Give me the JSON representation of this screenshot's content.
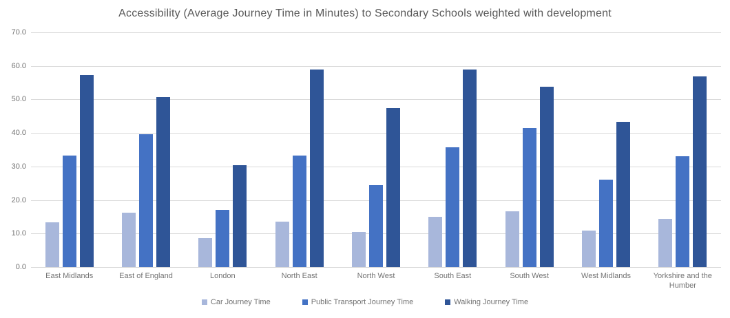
{
  "chart_data": {
    "type": "bar",
    "title": "Accessibility (Average Journey Time in Minutes) to Secondary Schools weighted with development",
    "xlabel": "",
    "ylabel": "",
    "ylim": [
      0,
      70
    ],
    "ytick_step": 10,
    "yticks_top_to_bottom": [
      "70.0",
      "60.0",
      "50.0",
      "40.0",
      "30.0",
      "20.0",
      "10.0",
      "0.0"
    ],
    "grid": "horizontal",
    "gridline_color": "#d9d9d9",
    "legend_position": "bottom",
    "categories": [
      "East Midlands",
      "East of England",
      "London",
      "North East",
      "North West",
      "South East",
      "South West",
      "West Midlands",
      "Yorkshire and the Humber"
    ],
    "series": [
      {
        "name": "Car Journey Time",
        "color": "#a8b7db",
        "values": [
          13.3,
          16.3,
          8.6,
          13.6,
          10.4,
          14.9,
          16.7,
          10.8,
          14.4
        ]
      },
      {
        "name": "Public Transport Journey Time",
        "color": "#4472c4",
        "values": [
          33.3,
          39.7,
          17.1,
          33.3,
          24.5,
          35.8,
          41.5,
          26.1,
          33.1
        ]
      },
      {
        "name": "Walking Journey Time",
        "color": "#2f5597",
        "values": [
          57.2,
          50.7,
          30.4,
          59.0,
          47.5,
          58.9,
          53.8,
          43.4,
          56.8
        ]
      }
    ]
  }
}
